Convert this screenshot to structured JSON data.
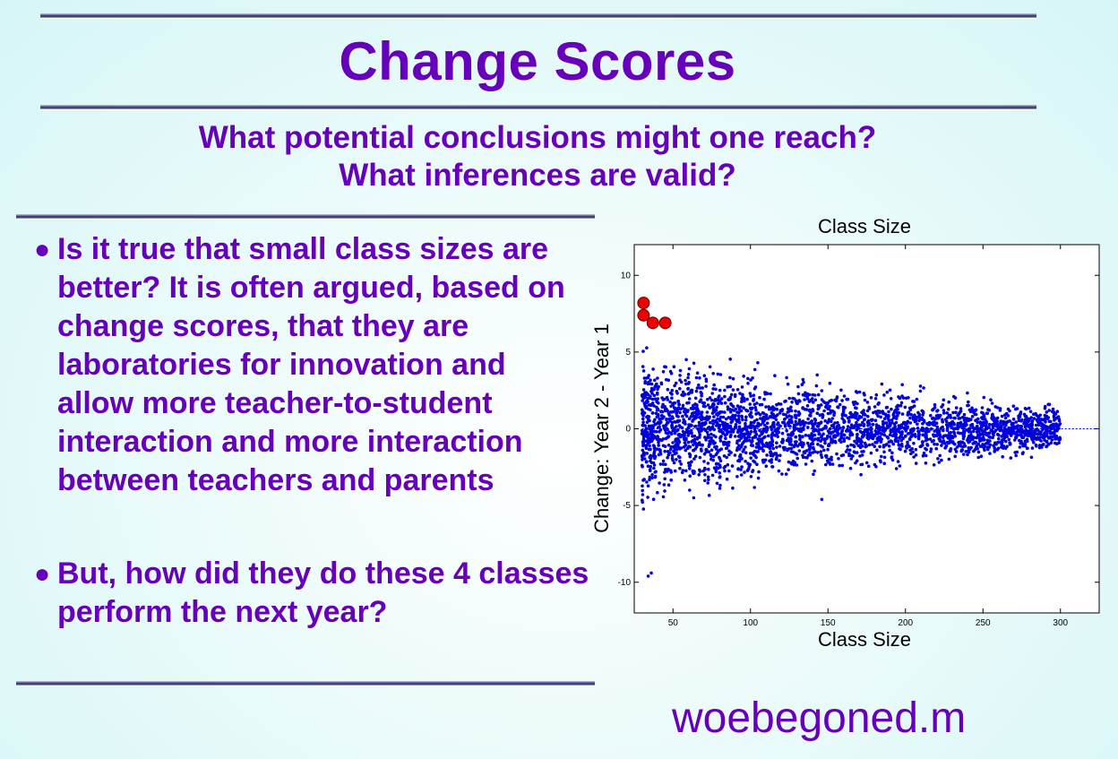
{
  "title": "Change Scores",
  "subtitle": {
    "line1": "What potential conclusions might one reach?",
    "line2": "What inferences are valid?"
  },
  "bullets": [
    {
      "marker": "●",
      "text": "Is it true that small class sizes are better?  It is often argued, based on change scores, that they are laboratories for innovation and allow more teacher-to-student interaction and more interaction between teachers and parents"
    },
    {
      "marker": "●",
      "text": "But, how did they do these 4 classes perform the next year?"
    }
  ],
  "footer": "woebegoned.m",
  "colors": {
    "text": "#6600bb",
    "points": "#0000dd",
    "highlight": "#ee0000"
  },
  "chart_data": {
    "type": "scatter",
    "title": "Class Size",
    "xlabel": "Class Size",
    "ylabel": "Change: Year 2 - Year 1",
    "xlim": [
      25,
      325
    ],
    "ylim": [
      -12,
      12
    ],
    "xticks": [
      50,
      100,
      150,
      200,
      250,
      300
    ],
    "yticks": [
      -10,
      -5,
      0,
      5,
      10
    ],
    "reference_line_y": 0,
    "grid": false,
    "series": [
      {
        "type": "cloud",
        "x_range": [
          30,
          300
        ],
        "y_spread_at_x30": 5.5,
        "y_spread_at_x300": 1.6,
        "approx_points": 3000
      },
      {
        "type": "highlighted",
        "points": [
          [
            31,
            8.2
          ],
          [
            31,
            7.4
          ],
          [
            37,
            6.9
          ],
          [
            45,
            6.9
          ]
        ]
      }
    ],
    "outliers": [
      [
        36,
        -9.4
      ],
      [
        34,
        -9.6
      ],
      [
        146,
        -4.6
      ]
    ]
  }
}
